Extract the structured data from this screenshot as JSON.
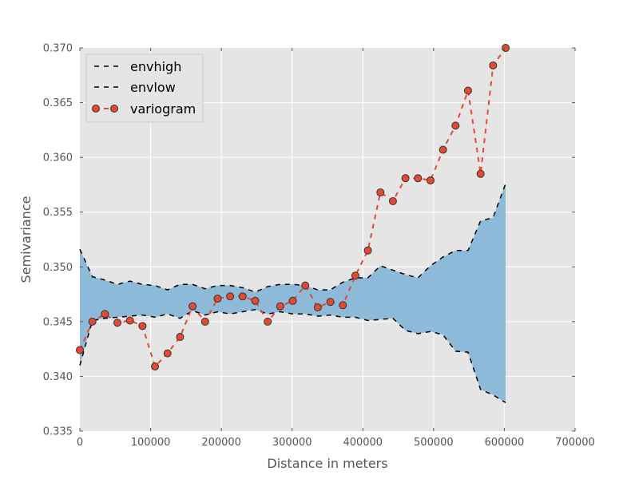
{
  "chart_data": {
    "type": "line",
    "title": "",
    "xlabel": "Distance in meters",
    "ylabel": "Semivariance",
    "xlim": [
      0,
      700000
    ],
    "ylim": [
      0.335,
      0.37
    ],
    "xticks": [
      0,
      100000,
      200000,
      300000,
      400000,
      500000,
      600000,
      700000
    ],
    "yticks": [
      0.335,
      0.34,
      0.345,
      0.35,
      0.355,
      0.36,
      0.365,
      0.37
    ],
    "xtick_labels": [
      "0",
      "100000",
      "200000",
      "300000",
      "400000",
      "500000",
      "600000",
      "700000"
    ],
    "ytick_labels": [
      "0.335",
      "0.340",
      "0.345",
      "0.350",
      "0.355",
      "0.360",
      "0.365",
      "0.370"
    ],
    "grid": true,
    "legend_position": "top-left",
    "colors": {
      "background": "#e5e5e5",
      "grid": "#ffffff",
      "envelope_fill": "#8ebad9",
      "envelope_line": "#000000",
      "variogram": "#e24a33",
      "marker_edge": "#333333"
    },
    "series": [
      {
        "name": "envhigh",
        "style": "dashed",
        "x": [
          0,
          17700,
          35400,
          53100,
          70800,
          88500,
          106200,
          123900,
          141600,
          159300,
          177000,
          194700,
          212400,
          230100,
          247800,
          265500,
          283200,
          300900,
          318600,
          336300,
          354000,
          371700,
          389400,
          407100,
          424800,
          442500,
          460200,
          477900,
          495600,
          513300,
          531000,
          548700,
          566400,
          584100,
          601800
        ],
        "values": [
          0.3516,
          0.3491,
          0.3488,
          0.3484,
          0.3487,
          0.3484,
          0.3483,
          0.3479,
          0.3484,
          0.3484,
          0.348,
          0.3483,
          0.3483,
          0.3481,
          0.3477,
          0.3482,
          0.3484,
          0.3484,
          0.3483,
          0.3479,
          0.3479,
          0.3486,
          0.349,
          0.349,
          0.3501,
          0.3497,
          0.3493,
          0.349,
          0.3501,
          0.3509,
          0.3515,
          0.3515,
          0.3542,
          0.3545,
          0.3576
        ]
      },
      {
        "name": "envlow",
        "style": "dashed",
        "x": [
          0,
          17700,
          35400,
          53100,
          70800,
          88500,
          106200,
          123900,
          141600,
          159300,
          177000,
          194700,
          212400,
          230100,
          247800,
          265500,
          283200,
          300900,
          318600,
          336300,
          354000,
          371700,
          389400,
          407100,
          424800,
          442500,
          460200,
          477900,
          495600,
          513300,
          531000,
          548700,
          566400,
          584100,
          601800
        ],
        "values": [
          0.341,
          0.3451,
          0.3453,
          0.3454,
          0.3455,
          0.3456,
          0.3454,
          0.3457,
          0.3453,
          0.346,
          0.3456,
          0.3459,
          0.3457,
          0.3459,
          0.3461,
          0.3457,
          0.3459,
          0.3457,
          0.3457,
          0.3455,
          0.3456,
          0.3454,
          0.3454,
          0.3451,
          0.3452,
          0.3453,
          0.3442,
          0.3439,
          0.3441,
          0.3438,
          0.3423,
          0.3422,
          0.3388,
          0.3383,
          0.3376
        ]
      },
      {
        "name": "variogram",
        "style": "dashed-markers",
        "x": [
          0,
          17700,
          35400,
          53100,
          70800,
          88500,
          106200,
          123900,
          141600,
          159300,
          177000,
          194700,
          212400,
          230100,
          247800,
          265500,
          283200,
          300900,
          318600,
          336300,
          354000,
          371700,
          389400,
          407100,
          424800,
          442500,
          460200,
          477900,
          495600,
          513300,
          531000,
          548700,
          566400,
          584100,
          601800
        ],
        "values": [
          0.3424,
          0.345,
          0.3457,
          0.3449,
          0.3451,
          0.3446,
          0.3409,
          0.3421,
          0.3436,
          0.3464,
          0.345,
          0.3471,
          0.3473,
          0.3473,
          0.3469,
          0.345,
          0.3464,
          0.3469,
          0.3483,
          0.3463,
          0.3468,
          0.3465,
          0.3492,
          0.3515,
          0.3568,
          0.356,
          0.3581,
          0.3581,
          0.3579,
          0.3607,
          0.3629,
          0.3661,
          0.3585,
          0.3684,
          0.37
        ]
      }
    ]
  }
}
